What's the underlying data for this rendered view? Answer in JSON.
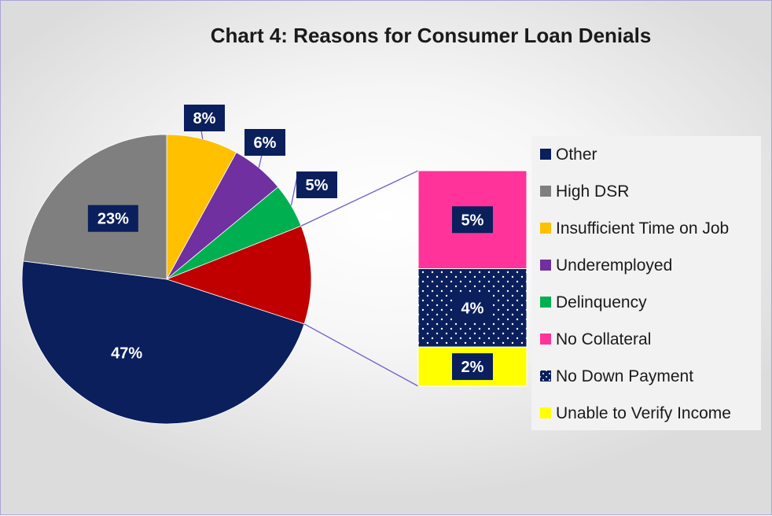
{
  "chart_data": {
    "type": "pie",
    "subtype": "bar-of-pie",
    "title": "Chart 4: Reasons for Consumer Loan Denials",
    "categories": [
      "Other",
      "High DSR",
      "Insufficient Time on Job",
      "Underemployed",
      "Delinquency",
      "No Collateral",
      "No Down Payment",
      "Unable to Verify Income"
    ],
    "values": [
      47,
      23,
      8,
      6,
      5,
      5,
      4,
      2
    ],
    "data_labels": [
      "47%",
      "23%",
      "8%",
      "6%",
      "5%",
      "5%",
      "4%",
      "2%"
    ],
    "colors": [
      "#0a1f5c",
      "#7f7f7f",
      "#ffc000",
      "#7030a0",
      "#00b050",
      "#ff3399",
      "#0a1f5c",
      "#ffff00"
    ],
    "patterns": [
      "solid",
      "solid",
      "solid",
      "solid",
      "solid",
      "solid",
      "dotted",
      "solid"
    ],
    "secondary_bar_categories": [
      "No Collateral",
      "No Down Payment",
      "Unable to Verify Income"
    ],
    "secondary_total_color": "#c00000",
    "legend_position": "right",
    "label_box_color": "#0a1f5c",
    "connector_color": "#6b5fc9"
  }
}
